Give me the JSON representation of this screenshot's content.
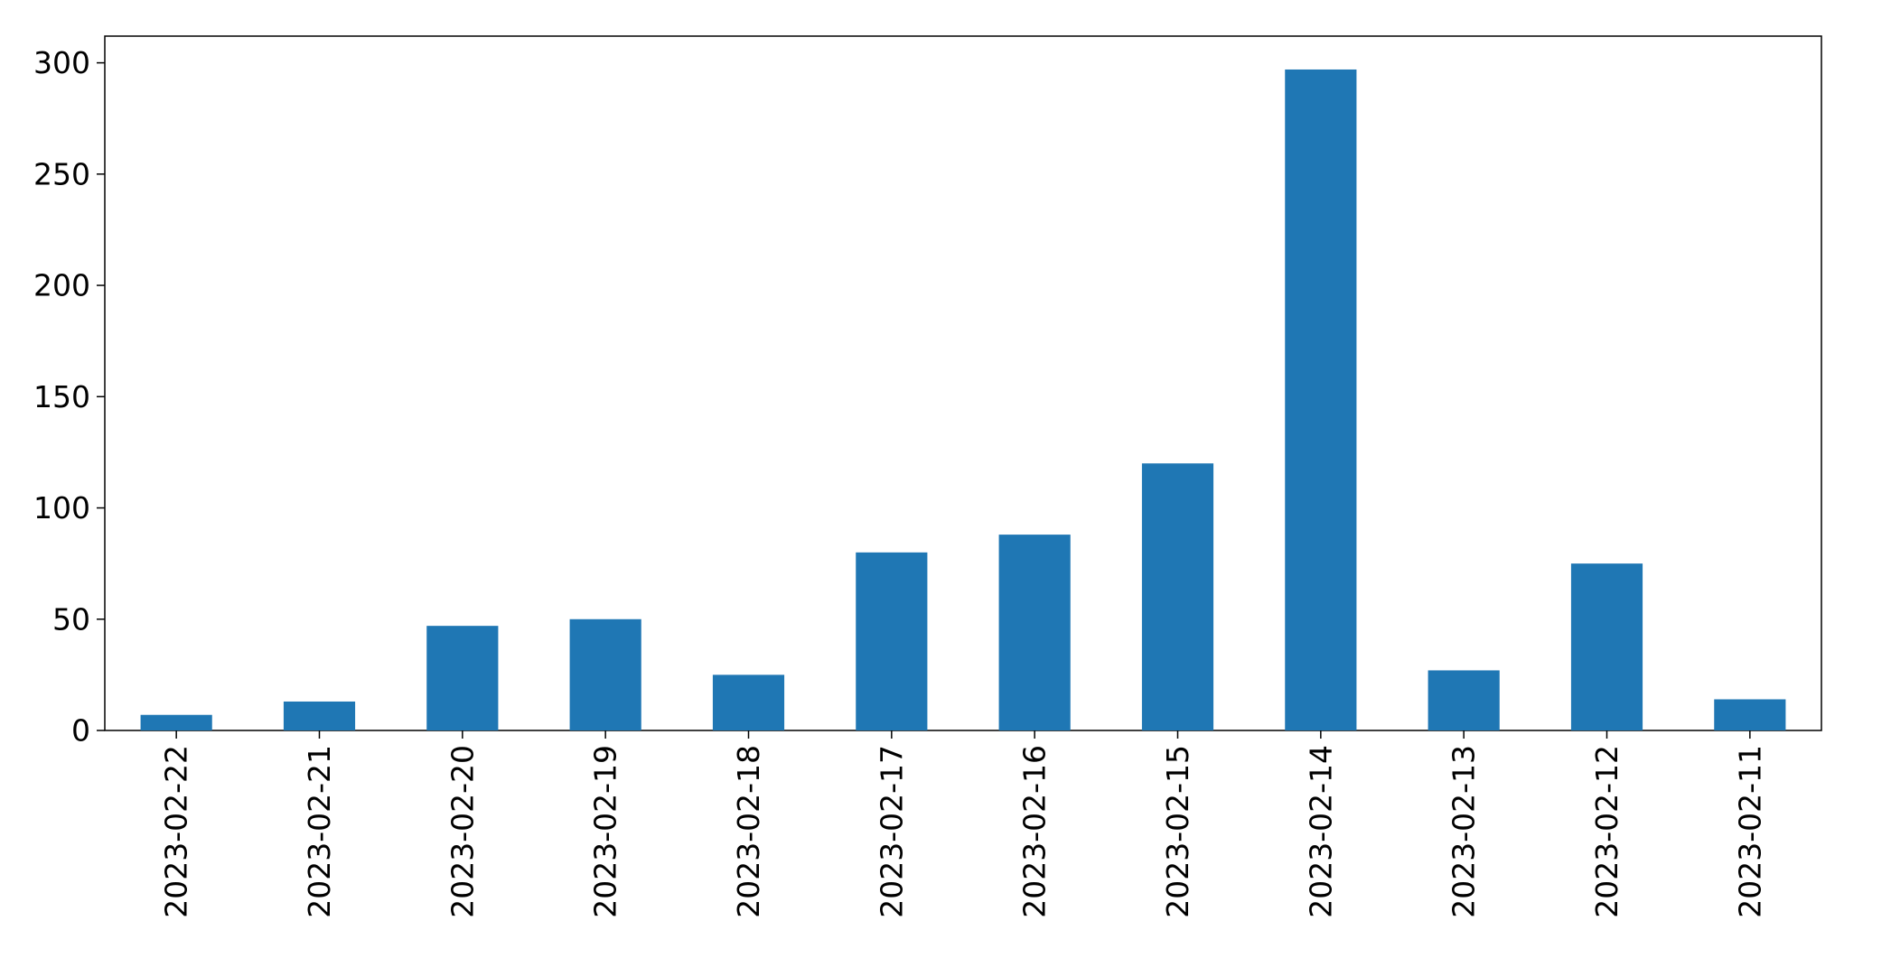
{
  "chart_data": {
    "type": "bar",
    "title": "",
    "xlabel": "",
    "ylabel": "",
    "categories": [
      "2023-02-22",
      "2023-02-21",
      "2023-02-20",
      "2023-02-19",
      "2023-02-18",
      "2023-02-17",
      "2023-02-16",
      "2023-02-15",
      "2023-02-14",
      "2023-02-13",
      "2023-02-12",
      "2023-02-11"
    ],
    "values": [
      7,
      13,
      47,
      50,
      25,
      80,
      88,
      120,
      297,
      27,
      75,
      14
    ],
    "ylim": [
      0,
      312
    ],
    "yticks": [
      0,
      50,
      100,
      150,
      200,
      250,
      300
    ],
    "bar_color": "#1f77b4",
    "grid": false,
    "legend": "none"
  }
}
